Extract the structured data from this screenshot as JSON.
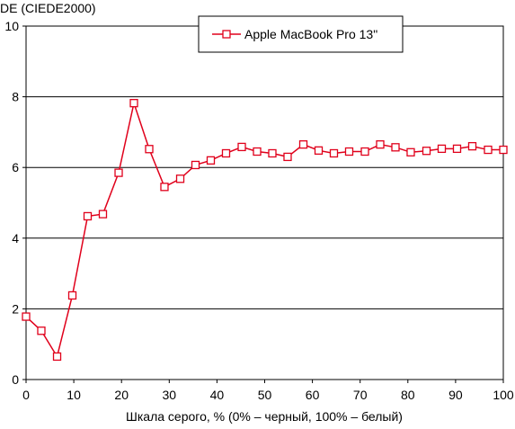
{
  "chart_data": {
    "type": "line",
    "y_label": "DE (CIEDE2000)",
    "x_label": "Шкала серого, % (0% – черный, 100% – белый)",
    "x": [
      0,
      3.2,
      6.5,
      9.7,
      12.9,
      16.1,
      19.4,
      22.6,
      25.8,
      29.0,
      32.3,
      35.5,
      38.7,
      41.9,
      45.2,
      48.4,
      51.6,
      54.8,
      58.1,
      61.3,
      64.5,
      67.7,
      71.0,
      74.2,
      77.4,
      80.6,
      83.9,
      87.1,
      90.3,
      93.5,
      96.8,
      100
    ],
    "series": [
      {
        "name": "Apple MacBook Pro 13\"",
        "color": "#e0001b",
        "values": [
          1.78,
          1.38,
          0.65,
          2.38,
          4.62,
          4.68,
          5.85,
          7.82,
          6.52,
          5.45,
          5.68,
          6.07,
          6.2,
          6.4,
          6.58,
          6.45,
          6.4,
          6.3,
          6.65,
          6.48,
          6.4,
          6.45,
          6.45,
          6.65,
          6.57,
          6.43,
          6.47,
          6.53,
          6.53,
          6.6,
          6.5,
          6.5
        ]
      }
    ],
    "xlim": [
      0,
      100
    ],
    "xticks": [
      0,
      10,
      20,
      30,
      40,
      50,
      60,
      70,
      80,
      90,
      100
    ],
    "ylim": [
      0,
      10
    ],
    "yticks": [
      0,
      2,
      4,
      6,
      8,
      10
    ],
    "grid": true
  }
}
